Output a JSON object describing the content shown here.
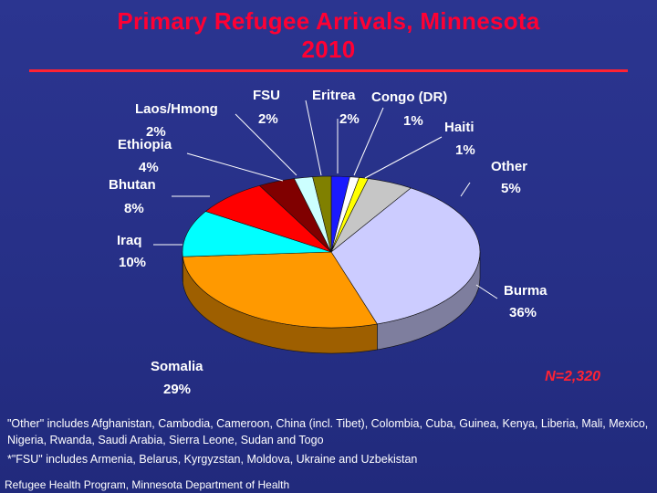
{
  "title": {
    "line1": "Primary Refugee Arrivals, Minnesota",
    "line2": "2010"
  },
  "n_label": "N=2,320",
  "notes": {
    "other": "\"Other\" includes Afghanistan, Cambodia, Cameroon, China (incl. Tibet), Colombia, Cuba, Guinea, Kenya, Liberia, Mali, Mexico, Nigeria, Rwanda, Saudi Arabia, Sierra Leone, Sudan and Togo",
    "fsu": "*\"FSU\" includes Armenia, Belarus, Kyrgyzstan, Moldova, Ukraine and Uzbekistan",
    "source": "Refugee Health Program, Minnesota Department of Health"
  },
  "colors": {
    "title": "#ff0033",
    "annotation": "#ff2233",
    "background": "#262f86",
    "label": "#ffffff"
  },
  "chart_data": {
    "type": "pie",
    "style": "3d",
    "title": "Primary Refugee Arrivals, Minnesota 2010",
    "total": 2320,
    "slices": [
      {
        "label": "Eritrea",
        "value_label": "2%",
        "value": 2,
        "color": "#1a1aff"
      },
      {
        "label": "Congo (DR)",
        "value_label": "1%",
        "value": 1,
        "color": "#ffffff"
      },
      {
        "label": "Haiti",
        "value_label": "1%",
        "value": 1,
        "color": "#ffff00"
      },
      {
        "label": "Other",
        "value_label": "5%",
        "value": 5,
        "color": "#c6c6c6"
      },
      {
        "label": "Burma",
        "value_label": "36%",
        "value": 36,
        "color": "#ccccff"
      },
      {
        "label": "Somalia",
        "value_label": "29%",
        "value": 29,
        "color": "#ff9900"
      },
      {
        "label": "Iraq",
        "value_label": "10%",
        "value": 10,
        "color": "#00ffff"
      },
      {
        "label": "Bhutan",
        "value_label": "8%",
        "value": 8,
        "color": "#ff0000"
      },
      {
        "label": "Ethiopia",
        "value_label": "4%",
        "value": 4,
        "color": "#800000"
      },
      {
        "label": "Laos/Hmong",
        "value_label": "2%",
        "value": 2,
        "color": "#ccffff"
      },
      {
        "label": "FSU",
        "value_label": "2%",
        "value": 2,
        "color": "#808000"
      }
    ]
  }
}
